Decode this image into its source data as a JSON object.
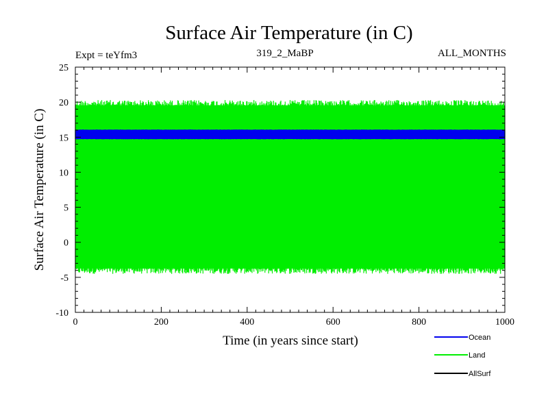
{
  "chart_data": {
    "type": "line",
    "title": "Surface Air Temperature (in C)",
    "subtitle_left": "Expt = teYfm3",
    "subtitle_center": "319_2_MaBP",
    "subtitle_right": "ALL_MONTHS",
    "xlabel": "Time (in years since start)",
    "ylabel": "Surface Air Temperature (in C)",
    "xlim": [
      0,
      1000
    ],
    "ylim": [
      -10,
      25
    ],
    "x_ticks": [
      0,
      200,
      400,
      600,
      800,
      1000
    ],
    "x_tick_labels": [
      "0",
      "200",
      "400",
      "600",
      "800",
      "1000"
    ],
    "y_ticks": [
      -10,
      -5,
      0,
      5,
      10,
      15,
      20,
      25
    ],
    "y_tick_labels": [
      "-10",
      "-5",
      "0",
      "5",
      "10",
      "15",
      "20",
      "25"
    ],
    "series": [
      {
        "name": "Land",
        "color": "#00ee00",
        "band_min_approx": -4.5,
        "band_max_approx": 20.3,
        "mean_approx": 8.0
      },
      {
        "name": "Ocean",
        "color": "#0000ee",
        "band_min_approx": 14.7,
        "band_max_approx": 16.1,
        "mean_approx": 15.4
      },
      {
        "name": "AllSurf",
        "color": "#000000"
      }
    ],
    "legend": {
      "placement": "bottom-right",
      "entries": [
        {
          "name": "Ocean",
          "color": "#0000ee"
        },
        {
          "name": "Land",
          "color": "#00ee00"
        },
        {
          "name": "AllSurf",
          "color": "#000000"
        }
      ]
    }
  }
}
